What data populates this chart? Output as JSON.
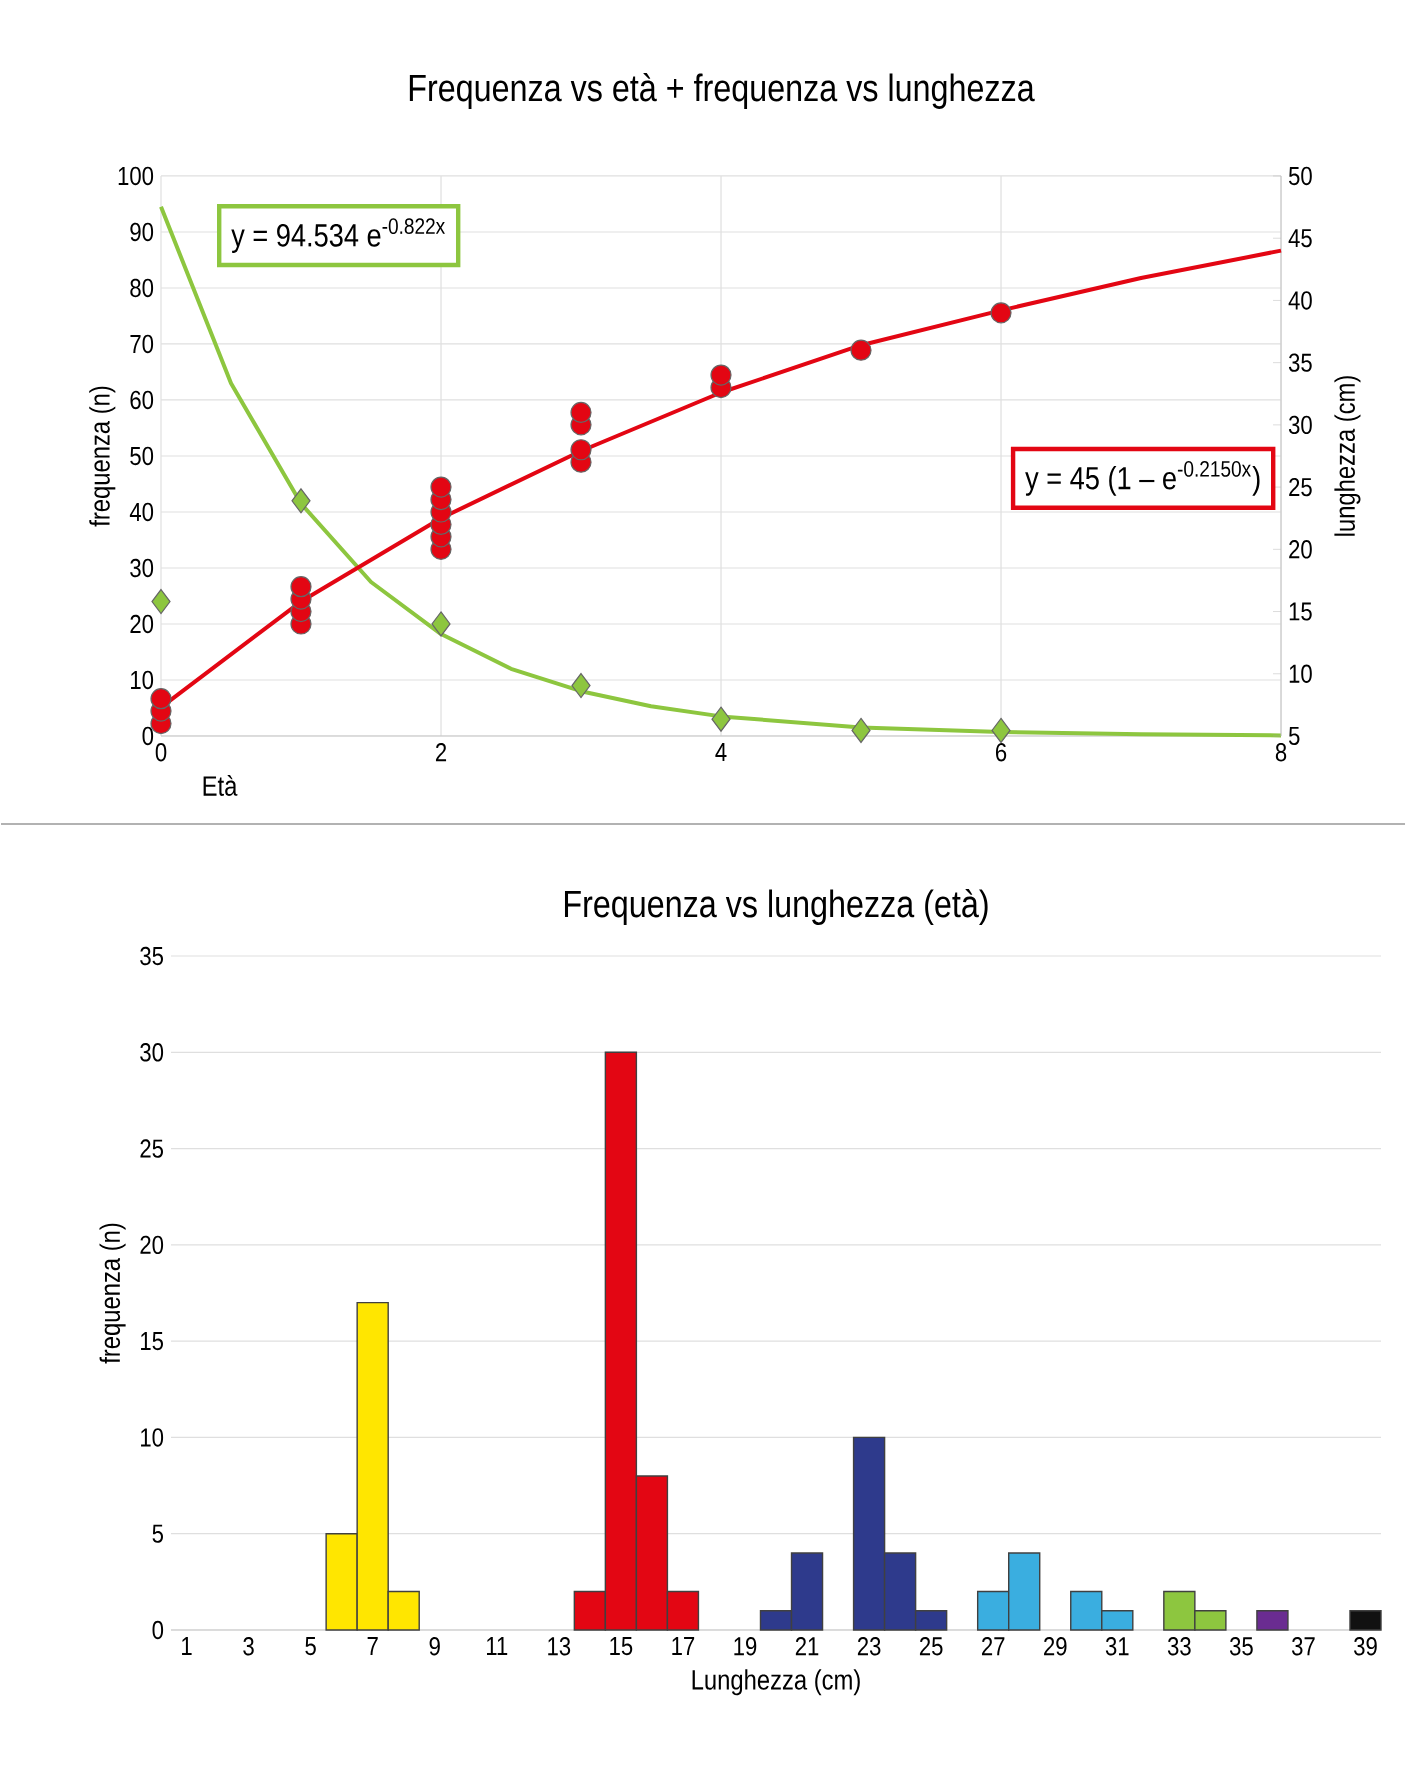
{
  "chart_data": [
    {
      "type": "scatter",
      "title": "Frequenza vs età + frequenza vs lunghezza",
      "xlabel": "Età",
      "ylabel": "frequenza (n)",
      "y2label": "lunghezza (cm)",
      "xlim": [
        0,
        8
      ],
      "xticks": [
        0,
        2,
        4,
        6,
        8
      ],
      "ylim": [
        0,
        100
      ],
      "yticks": [
        0,
        10,
        20,
        30,
        40,
        50,
        60,
        70,
        80,
        90,
        100
      ],
      "y2lim": [
        5,
        50
      ],
      "y2ticks": [
        5,
        10,
        15,
        20,
        25,
        30,
        35,
        40,
        45,
        50
      ],
      "grid": true,
      "series": [
        {
          "type": "line",
          "color": "#8dc63f",
          "x": [
            0,
            0.5,
            1,
            1.5,
            2,
            2.5,
            3,
            3.5,
            4,
            5,
            6,
            7,
            8
          ],
          "values": [
            94.5,
            63,
            41.5,
            27.5,
            18.2,
            12,
            8,
            5.3,
            3.5,
            1.5,
            0.7,
            0.3,
            0.1
          ]
        },
        {
          "type": "line",
          "axis": "y2",
          "color": "#e30613",
          "x": [
            0,
            1,
            2,
            3,
            4,
            5,
            6,
            7,
            8
          ],
          "values": [
            7.3,
            15.8,
            22.5,
            27.9,
            32.6,
            36.4,
            39.2,
            41.8,
            44
          ]
        },
        {
          "type": "scatter",
          "marker": "diamond",
          "color": "#8dc63f",
          "x": [
            0,
            1,
            2,
            3,
            4,
            5,
            6
          ],
          "values": [
            24,
            42,
            20,
            9,
            3,
            1,
            1
          ]
        },
        {
          "type": "scatter",
          "marker": "circle",
          "axis": "y2",
          "color": "#e30613",
          "x": [
            0,
            0,
            0,
            1,
            1,
            1,
            1,
            2,
            2,
            2,
            2,
            2,
            2,
            3,
            3,
            3,
            3,
            4,
            4,
            5,
            6
          ],
          "values": [
            6,
            7,
            8,
            14,
            15,
            16,
            17,
            20,
            21,
            22,
            23,
            24,
            25,
            27,
            28,
            30,
            31,
            33,
            34,
            36,
            39
          ]
        }
      ],
      "annotations": [
        "y = 94.534 e$^{-0.822x}$",
        "y = 45 (1 – e$^{-0.2150x}$)"
      ]
    },
    {
      "type": "bar",
      "title": "Frequenza vs lunghezza (età)",
      "xlabel": "Lunghezza (cm)",
      "ylabel": "frequenza (n)",
      "ylim": [
        0,
        35
      ],
      "yticks": [
        0,
        5,
        10,
        15,
        20,
        25,
        30,
        35
      ],
      "grid": "y",
      "categories": [
        "1",
        null,
        "3",
        null,
        "5",
        null,
        "7",
        null,
        "9",
        null,
        "11",
        null,
        "13",
        null,
        "15",
        null,
        "17",
        null,
        "19",
        null,
        "21",
        null,
        "23",
        null,
        "25",
        null,
        "27",
        null,
        "29",
        null,
        "31",
        null,
        "33",
        null,
        "35",
        null,
        "37",
        null,
        "39"
      ],
      "values": [
        null,
        null,
        null,
        null,
        null,
        5,
        17,
        2,
        null,
        null,
        null,
        null,
        null,
        2,
        30,
        8,
        2,
        null,
        null,
        1,
        4,
        null,
        10,
        4,
        1,
        null,
        2,
        4,
        null,
        2,
        1,
        null,
        2,
        1,
        null,
        1,
        null,
        null,
        1
      ],
      "colors": [
        null,
        null,
        null,
        null,
        null,
        "#ffe600",
        "#ffe600",
        "#ffe600",
        null,
        null,
        null,
        null,
        null,
        "#e30613",
        "#e30613",
        "#e30613",
        "#e30613",
        null,
        null,
        "#2e3a8c",
        "#2e3a8c",
        null,
        "#2e3a8c",
        "#2e3a8c",
        "#2e3a8c",
        null,
        "#3aaee0",
        "#3aaee0",
        null,
        "#3aaee0",
        "#3aaee0",
        null,
        "#8dc63f",
        "#8dc63f",
        null,
        "#6a2c91",
        null,
        null,
        "#111111"
      ]
    }
  ]
}
